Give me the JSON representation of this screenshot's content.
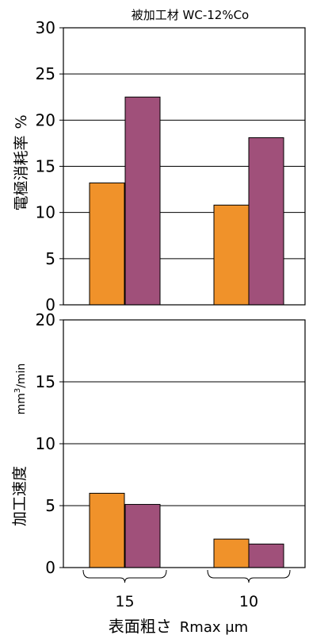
{
  "chart_data": [
    {
      "type": "bar",
      "title": "被加工材 WC-12%Co",
      "ylabel_main": "電極消耗率",
      "ylabel_unit": "%",
      "xlabel": "",
      "categories": [
        "15",
        "10"
      ],
      "ylim": [
        0,
        30
      ],
      "yticks": [
        0,
        5,
        10,
        15,
        20,
        25,
        30
      ],
      "grid": true,
      "colors": [
        "#F0922A",
        "#A0507A"
      ],
      "series": [
        {
          "values": [
            13.2,
            10.8
          ]
        },
        {
          "values": [
            22.5,
            18.1
          ]
        }
      ]
    },
    {
      "type": "bar",
      "title": "",
      "ylabel_main": "加工速度",
      "ylabel_unit_prefix": "mm",
      "ylabel_unit_sup": "3",
      "ylabel_unit_suffix": "/min",
      "xlabel_main": "表面粗さ",
      "xlabel_unit": "Rmax μm",
      "categories": [
        "15",
        "10"
      ],
      "ylim": [
        0,
        20
      ],
      "yticks": [
        0,
        5,
        10,
        15,
        20
      ],
      "grid": true,
      "colors": [
        "#F0922A",
        "#A0507A"
      ],
      "series": [
        {
          "values": [
            6.0,
            2.3
          ]
        },
        {
          "values": [
            5.1,
            1.9
          ]
        }
      ]
    }
  ]
}
